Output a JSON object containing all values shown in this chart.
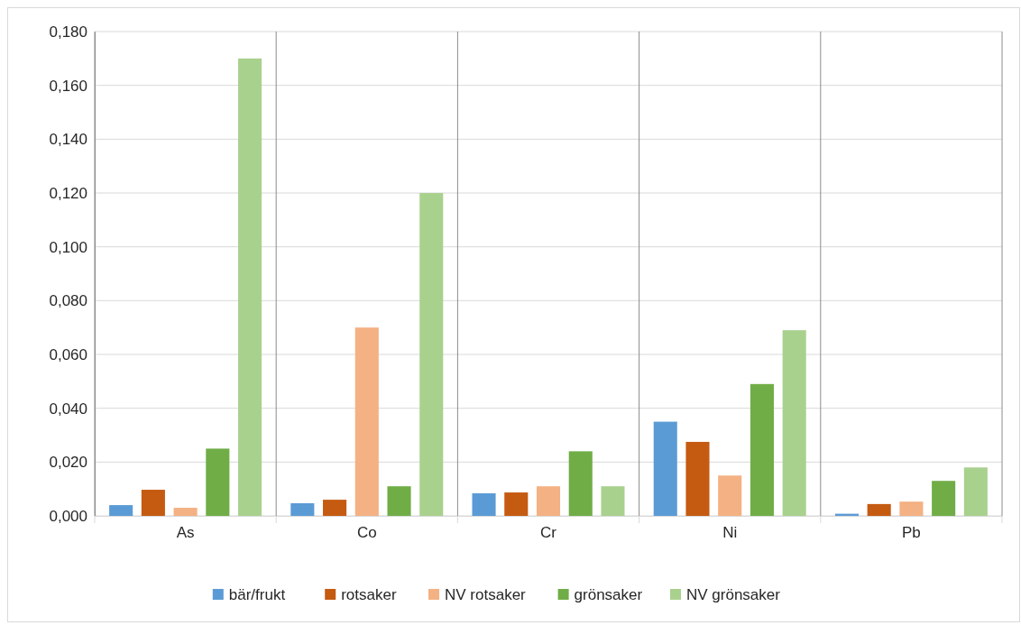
{
  "chart_data": {
    "type": "bar",
    "categories": [
      "As",
      "Co",
      "Cr",
      "Ni",
      "Pb"
    ],
    "series": [
      {
        "name": "bär/frukt",
        "color": "#5b9bd5",
        "values": [
          0.004,
          0.0047,
          0.0084,
          0.035,
          0.0008
        ]
      },
      {
        "name": "rotsaker",
        "color": "#c55a11",
        "values": [
          0.0097,
          0.006,
          0.0087,
          0.0275,
          0.0044
        ]
      },
      {
        "name": "NV rotsaker",
        "color": "#f4b183",
        "values": [
          0.003,
          0.07,
          0.011,
          0.015,
          0.0053
        ]
      },
      {
        "name": "grönsaker",
        "color": "#70ad47",
        "values": [
          0.025,
          0.011,
          0.024,
          0.049,
          0.013
        ]
      },
      {
        "name": "NV grönsaker",
        "color": "#a9d18e",
        "values": [
          0.17,
          0.12,
          0.011,
          0.069,
          0.018
        ]
      }
    ],
    "ylim": [
      0,
      0.18
    ],
    "yticks": [
      {
        "value": 0,
        "label": "0,000"
      },
      {
        "value": 0.02,
        "label": "0,020"
      },
      {
        "value": 0.04,
        "label": "0,040"
      },
      {
        "value": 0.06,
        "label": "0,060"
      },
      {
        "value": 0.08,
        "label": "0,080"
      },
      {
        "value": 0.1,
        "label": "0,100"
      },
      {
        "value": 0.12,
        "label": "0,120"
      },
      {
        "value": 0.14,
        "label": "0,140"
      },
      {
        "value": 0.16,
        "label": "0,160"
      },
      {
        "value": 0.18,
        "label": "0,180"
      }
    ],
    "grid": true,
    "legend": "bottom"
  }
}
